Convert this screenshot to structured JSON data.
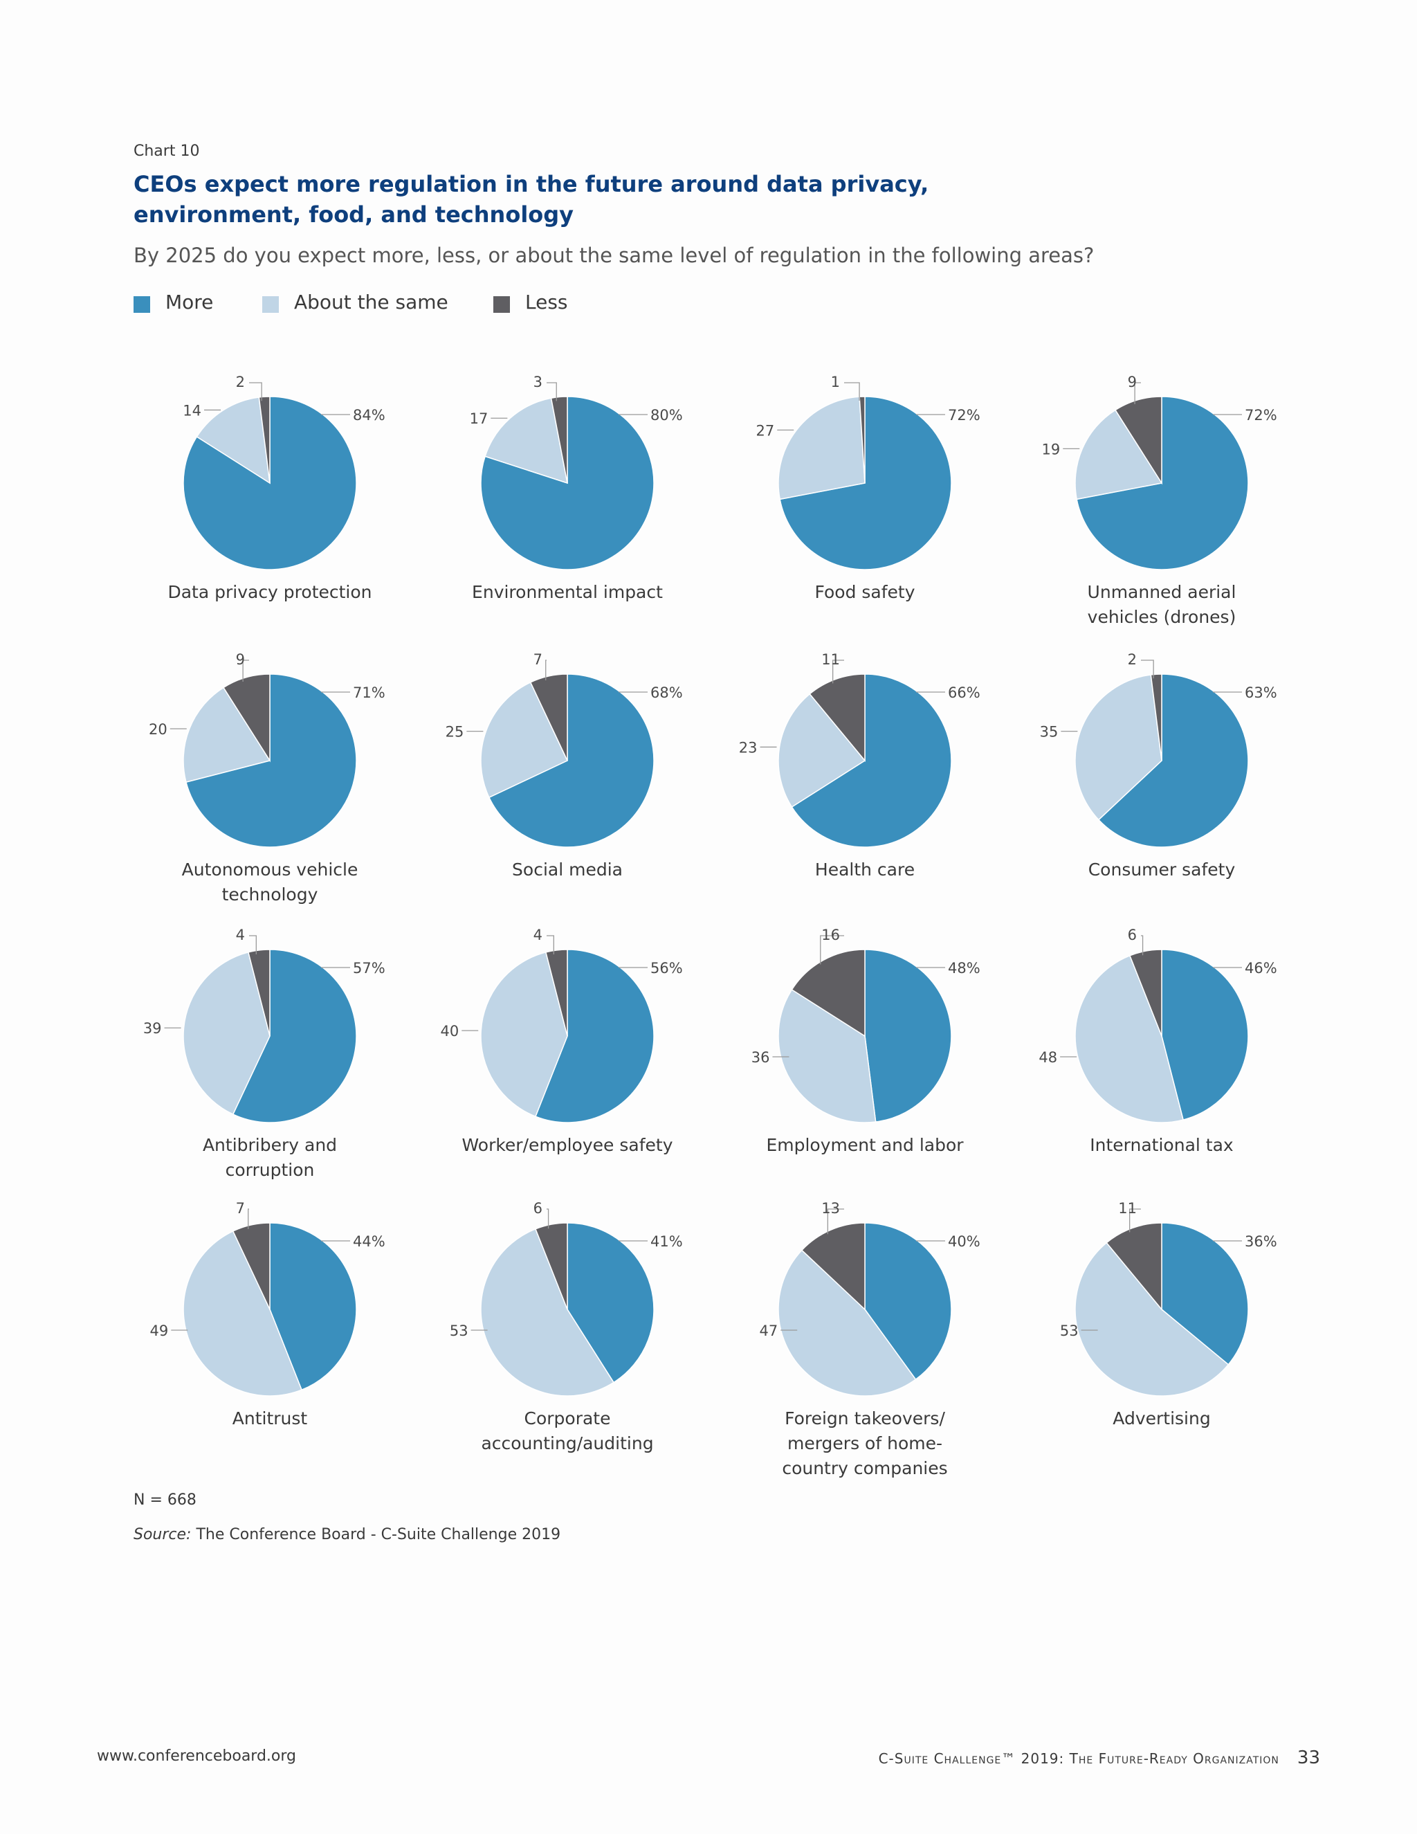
{
  "header": {
    "chart_label": "Chart 10",
    "title": "CEOs expect more regulation in the future around data privacy, environment, food, and technology",
    "question": "By 2025 do you expect more, less, or about the same level of regulation in the following areas?"
  },
  "legend": [
    {
      "label": "More",
      "color": "#3a8fbd"
    },
    {
      "label": "About the same",
      "color": "#c0d5e6"
    },
    {
      "label": "Less",
      "color": "#5f5e62"
    }
  ],
  "chart_data": {
    "type": "pie",
    "title": "CEOs expect more regulation in the future around data privacy, environment, food, and technology",
    "series_names": [
      "More",
      "About the same",
      "Less"
    ],
    "colors": {
      "More": "#3a8fbd",
      "About the same": "#c0d5e6",
      "Less": "#5f5e62"
    },
    "unit": "%",
    "legend_position": "top-left",
    "pies": [
      {
        "label": "Data privacy protection",
        "lines": [
          "Data privacy protection"
        ],
        "more": 84,
        "same": 14,
        "less": 2
      },
      {
        "label": "Environmental impact",
        "lines": [
          "Environmental impact"
        ],
        "more": 80,
        "same": 17,
        "less": 3
      },
      {
        "label": "Food safety",
        "lines": [
          "Food safety"
        ],
        "more": 72,
        "same": 27,
        "less": 1
      },
      {
        "label": "Unmanned aerial vehicles (drones)",
        "lines": [
          "Unmanned aerial",
          "vehicles (drones)"
        ],
        "more": 72,
        "same": 19,
        "less": 9
      },
      {
        "label": "Autonomous vehicle technology",
        "lines": [
          "Autonomous vehicle",
          "technology"
        ],
        "more": 71,
        "same": 20,
        "less": 9
      },
      {
        "label": "Social media",
        "lines": [
          "Social media"
        ],
        "more": 68,
        "same": 25,
        "less": 7
      },
      {
        "label": "Health care",
        "lines": [
          "Health care"
        ],
        "more": 66,
        "same": 23,
        "less": 11
      },
      {
        "label": "Consumer safety",
        "lines": [
          "Consumer safety"
        ],
        "more": 63,
        "same": 35,
        "less": 2
      },
      {
        "label": "Antibribery and corruption",
        "lines": [
          "Antibribery and",
          "corruption"
        ],
        "more": 57,
        "same": 39,
        "less": 4
      },
      {
        "label": "Worker/employee safety",
        "lines": [
          "Worker/employee safety"
        ],
        "more": 56,
        "same": 40,
        "less": 4
      },
      {
        "label": "Employment and labor",
        "lines": [
          "Employment and labor"
        ],
        "more": 48,
        "same": 36,
        "less": 16
      },
      {
        "label": "International tax",
        "lines": [
          "International tax"
        ],
        "more": 46,
        "same": 48,
        "less": 6
      },
      {
        "label": "Antitrust",
        "lines": [
          "Antitrust"
        ],
        "more": 44,
        "same": 49,
        "less": 7
      },
      {
        "label": "Corporate accounting/auditing",
        "lines": [
          "Corporate",
          "accounting/auditing"
        ],
        "more": 41,
        "same": 53,
        "less": 6
      },
      {
        "label": "Foreign takeovers/ mergers of home-country companies",
        "lines": [
          "Foreign takeovers/",
          "mergers of home-",
          "country companies"
        ],
        "more": 40,
        "same": 47,
        "less": 13
      },
      {
        "label": "Advertising",
        "lines": [
          "Advertising"
        ],
        "more": 36,
        "same": 53,
        "less": 11
      }
    ]
  },
  "notes": {
    "n": "N = 668",
    "source_key": "Source:",
    "source_text": " The Conference Board - C-Suite Challenge 2019"
  },
  "footer": {
    "url": "www.conferenceboard.org",
    "publication": "C-Suite Challenge™ 2019: The Future-Ready Organization",
    "page_number": "33"
  }
}
